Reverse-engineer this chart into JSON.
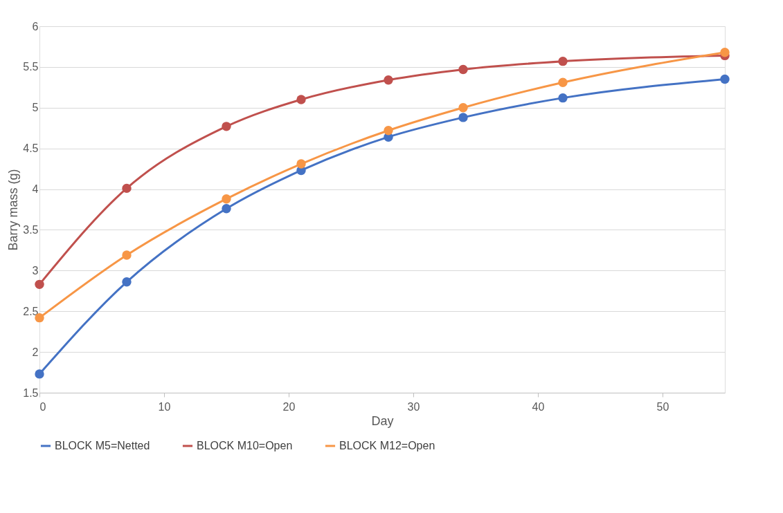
{
  "chart_data": {
    "type": "line",
    "xlabel": "Day",
    "ylabel": "Barry mass (g)",
    "x": [
      0,
      7,
      15,
      21,
      28,
      34,
      42,
      55
    ],
    "series": [
      {
        "name": "BLOCK M5=Netted",
        "color": "#4472c4",
        "values": [
          1.73,
          2.86,
          3.76,
          4.23,
          4.64,
          4.88,
          5.12,
          5.35
        ]
      },
      {
        "name": "BLOCK M10=Open",
        "color": "#c0504d",
        "values": [
          2.83,
          4.01,
          4.77,
          5.1,
          5.34,
          5.47,
          5.57,
          5.64
        ]
      },
      {
        "name": "BLOCK M12=Open",
        "color": "#f79646",
        "values": [
          2.42,
          3.19,
          3.88,
          4.31,
          4.72,
          5.0,
          5.31,
          5.68
        ]
      }
    ],
    "xlim": [
      0,
      55
    ],
    "xticks": [
      0,
      10,
      20,
      30,
      40,
      50
    ],
    "ylim": [
      1.5,
      6
    ],
    "yticks": [
      1.5,
      2,
      2.5,
      3,
      3.5,
      4,
      4.5,
      5,
      5.5,
      6
    ],
    "grid": "y",
    "legend": "bottom",
    "marker": "circle",
    "line_style": "solid"
  }
}
